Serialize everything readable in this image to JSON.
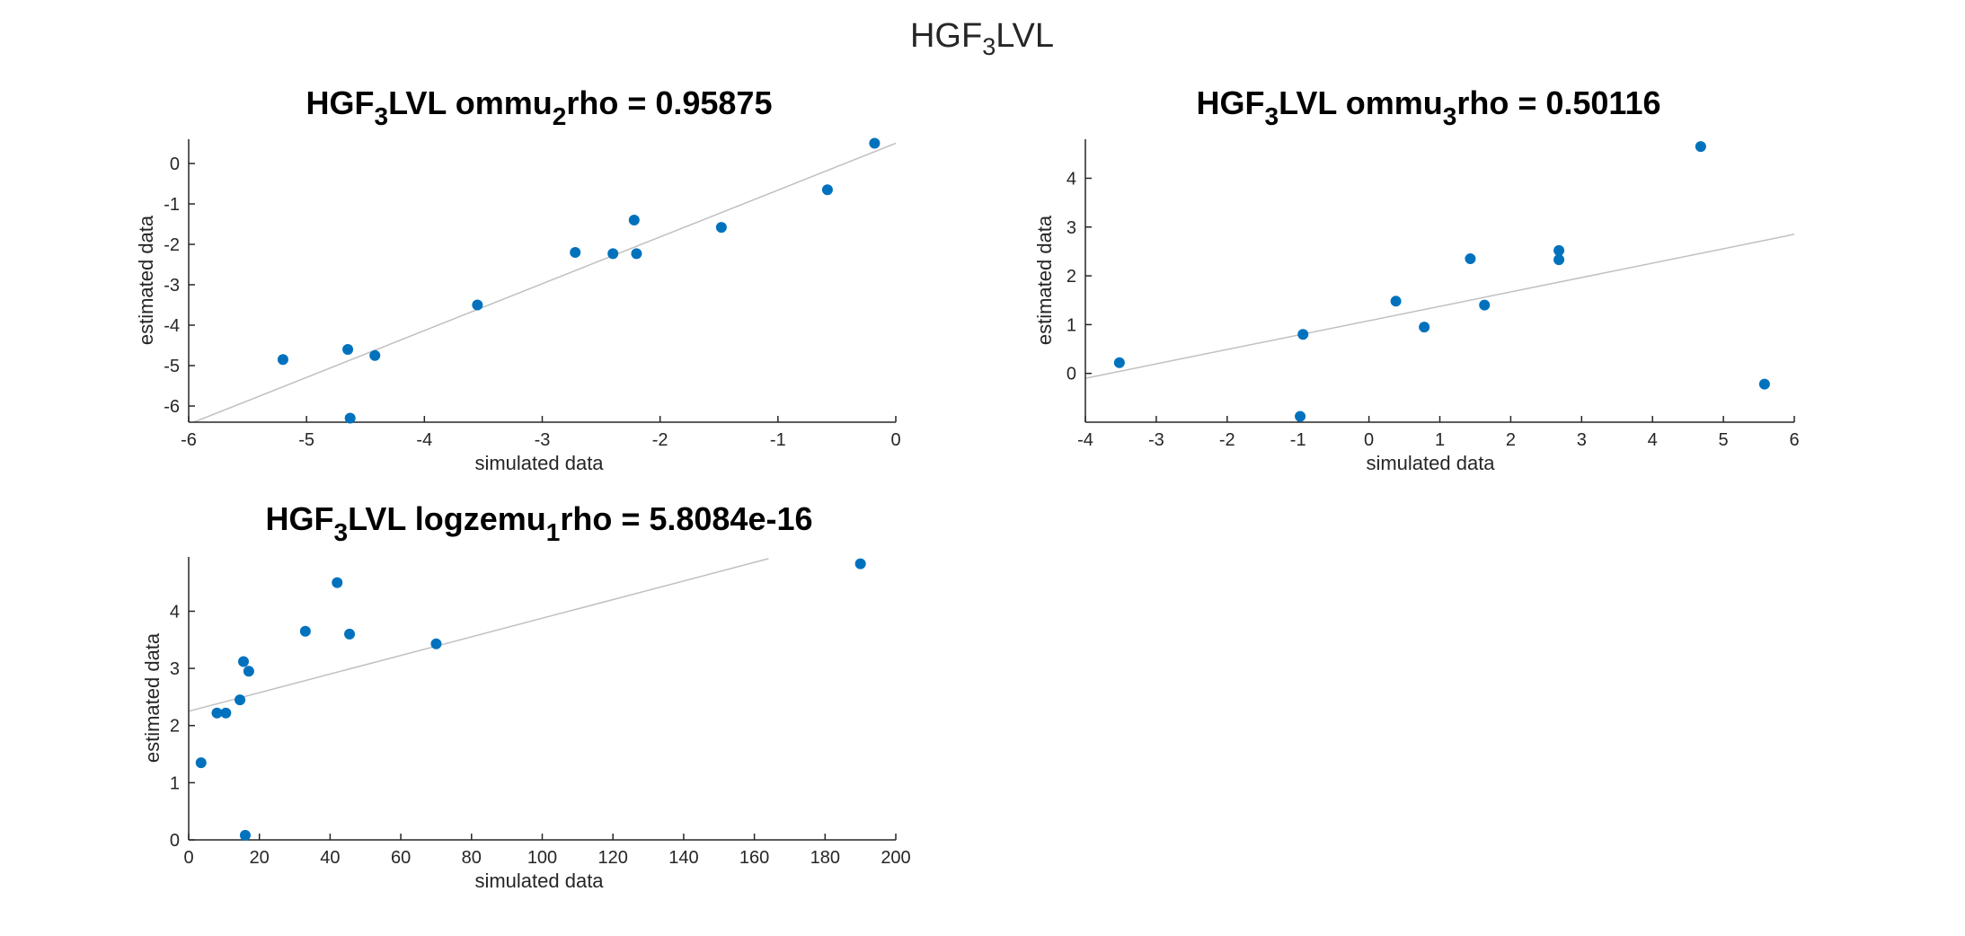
{
  "figure": {
    "title": {
      "base": "HGF",
      "sub": "3",
      "rest": "LVL"
    }
  },
  "chart_data": [
    {
      "type": "scatter",
      "title": {
        "part1": "HGF",
        "sub1": "3",
        "part2": "LVL ommu",
        "sub2": "2",
        "part3": "rho = 0.95875"
      },
      "xlabel": "simulated data",
      "ylabel": "estimated data",
      "xlim": [
        -6,
        0
      ],
      "ylim": [
        -6.4,
        0.6
      ],
      "xticks": [
        -6,
        -5,
        -4,
        -3,
        -2,
        -1,
        0
      ],
      "yticks": [
        -6,
        -5,
        -4,
        -3,
        -2,
        -1,
        0
      ],
      "grid": false,
      "marker_color": "#0072BD",
      "fit_line_color": "#C0C0C0",
      "points": [
        {
          "x": -5.2,
          "y": -4.85
        },
        {
          "x": -4.65,
          "y": -4.6
        },
        {
          "x": -4.42,
          "y": -4.75
        },
        {
          "x": -4.63,
          "y": -6.3
        },
        {
          "x": -3.55,
          "y": -3.5
        },
        {
          "x": -2.72,
          "y": -2.2
        },
        {
          "x": -2.4,
          "y": -2.23
        },
        {
          "x": -2.2,
          "y": -2.23
        },
        {
          "x": -2.22,
          "y": -1.4
        },
        {
          "x": -1.48,
          "y": -1.58
        },
        {
          "x": -0.58,
          "y": -0.65
        },
        {
          "x": -0.18,
          "y": 0.5
        }
      ],
      "fit_line": {
        "x": [
          -6,
          0
        ],
        "y": [
          -6.45,
          0.5
        ]
      }
    },
    {
      "type": "scatter",
      "title": {
        "part1": "HGF",
        "sub1": "3",
        "part2": "LVL ommu",
        "sub2": "3",
        "part3": "rho = 0.50116"
      },
      "xlabel": "simulated data",
      "ylabel": "estimated data",
      "xlim": [
        -4,
        6
      ],
      "ylim": [
        -1,
        4.8
      ],
      "xticks": [
        -4,
        -3,
        -2,
        -1,
        0,
        1,
        2,
        3,
        4,
        5,
        6
      ],
      "yticks": [
        0,
        1,
        2,
        3,
        4
      ],
      "grid": false,
      "marker_color": "#0072BD",
      "fit_line_color": "#C0C0C0",
      "points": [
        {
          "x": -3.52,
          "y": 0.22
        },
        {
          "x": -0.93,
          "y": 0.8
        },
        {
          "x": -0.97,
          "y": -0.88
        },
        {
          "x": 0.38,
          "y": 1.48
        },
        {
          "x": 0.78,
          "y": 0.95
        },
        {
          "x": 1.43,
          "y": 2.35
        },
        {
          "x": 1.63,
          "y": 1.4
        },
        {
          "x": 2.68,
          "y": 2.52
        },
        {
          "x": 2.68,
          "y": 2.33
        },
        {
          "x": 4.68,
          "y": 4.65
        },
        {
          "x": 5.58,
          "y": -0.22
        }
      ],
      "fit_line": {
        "x": [
          -4,
          6
        ],
        "y": [
          -0.1,
          2.85
        ]
      }
    },
    {
      "type": "scatter",
      "title": {
        "part1": "HGF",
        "sub1": "3",
        "part2": "LVL logzemu",
        "sub2": "1",
        "part3": "rho = 5.8084e-16"
      },
      "xlabel": "simulated data",
      "ylabel": "estimated data",
      "xlim": [
        0,
        200
      ],
      "ylim": [
        0,
        4.95
      ],
      "xticks": [
        0,
        20,
        40,
        60,
        80,
        100,
        120,
        140,
        160,
        180,
        200
      ],
      "yticks": [
        0,
        1,
        2,
        3,
        4
      ],
      "grid": false,
      "marker_color": "#0072BD",
      "fit_line_color": "#C0C0C0",
      "points": [
        {
          "x": 3.5,
          "y": 1.35
        },
        {
          "x": 8,
          "y": 2.22
        },
        {
          "x": 10.5,
          "y": 2.22
        },
        {
          "x": 14.5,
          "y": 2.45
        },
        {
          "x": 15.5,
          "y": 3.12
        },
        {
          "x": 17,
          "y": 2.95
        },
        {
          "x": 16,
          "y": 0.08
        },
        {
          "x": 33,
          "y": 3.65
        },
        {
          "x": 42,
          "y": 4.5
        },
        {
          "x": 45.5,
          "y": 3.6
        },
        {
          "x": 70,
          "y": 3.43
        },
        {
          "x": 190,
          "y": 4.83
        }
      ],
      "fit_line": {
        "x": [
          0,
          164
        ],
        "y": [
          2.25,
          4.92
        ]
      }
    }
  ]
}
